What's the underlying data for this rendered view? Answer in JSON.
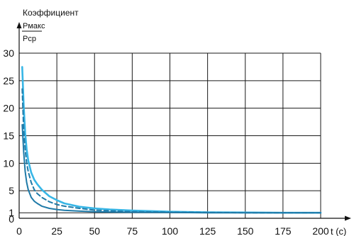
{
  "chart_data": {
    "type": "line",
    "title": "",
    "ylabel": {
      "line1": "Коэффициент",
      "numerator": "Pмакс",
      "denominator": "Pср"
    },
    "xlabel": "t (c)",
    "xlim": [
      0,
      200
    ],
    "ylim": [
      0,
      30
    ],
    "x_ticks": [
      0,
      25,
      50,
      75,
      100,
      125,
      150,
      175,
      200
    ],
    "y_ticks": [
      0,
      1,
      5,
      10,
      15,
      20,
      25,
      30
    ],
    "grid": true,
    "colors": {
      "grid": "#1a1a1a",
      "series_light": "#38b6e6",
      "series_dark": "#1f7aa8",
      "axis": "#111111"
    },
    "series": [
      {
        "style": "solid-light",
        "x": [
          2,
          3,
          4,
          5,
          6,
          8,
          10,
          12,
          15,
          20,
          25,
          30,
          40,
          50,
          60,
          75,
          100,
          125,
          150,
          175,
          200
        ],
        "y": [
          27.5,
          20.5,
          15.5,
          12.5,
          10.5,
          8.3,
          7.0,
          6.2,
          5.2,
          4.0,
          3.3,
          2.7,
          2.1,
          1.8,
          1.6,
          1.4,
          1.2,
          1.1,
          1.05,
          1.0,
          1.0
        ]
      },
      {
        "style": "dashed-dark",
        "x": [
          2,
          3,
          4,
          5,
          6,
          8,
          10,
          12,
          15,
          20,
          25,
          30,
          40,
          50,
          60,
          75,
          100,
          125,
          150,
          175,
          200
        ],
        "y": [
          23.5,
          16.0,
          12.5,
          10.0,
          8.5,
          6.5,
          5.2,
          4.5,
          3.8,
          3.0,
          2.5,
          2.2,
          1.8,
          1.5,
          1.35,
          1.2,
          1.1,
          1.05,
          1.0,
          1.0,
          1.0
        ]
      },
      {
        "style": "solid-dark",
        "x": [
          2,
          3,
          4,
          5,
          6,
          8,
          10,
          12,
          15,
          20,
          25,
          30,
          40,
          50,
          60,
          75,
          100,
          125,
          150,
          175,
          200
        ],
        "y": [
          17.0,
          12.0,
          8.5,
          6.5,
          5.2,
          3.8,
          3.1,
          2.7,
          2.2,
          1.8,
          1.6,
          1.45,
          1.3,
          1.2,
          1.15,
          1.1,
          1.05,
          1.0,
          1.0,
          1.0,
          1.0
        ]
      }
    ]
  }
}
